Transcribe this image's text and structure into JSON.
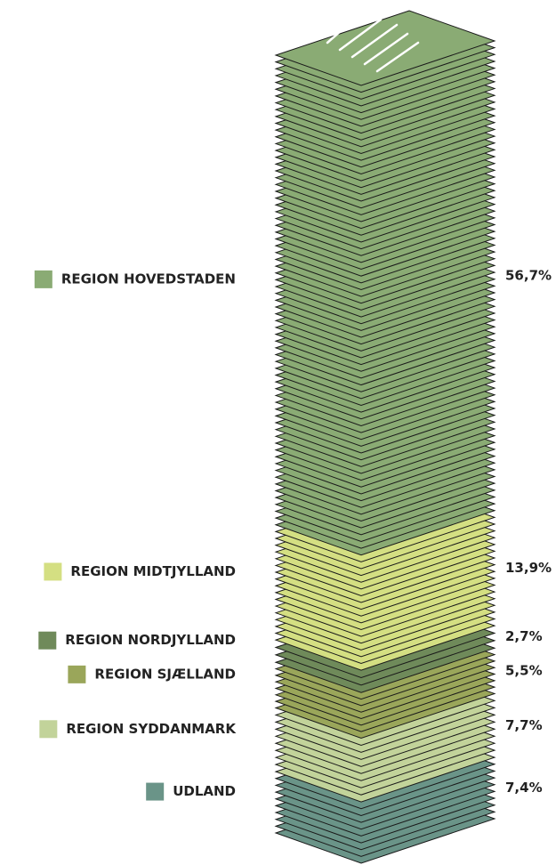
{
  "chart_data": {
    "type": "stacked-layers",
    "series": [
      {
        "name": "REGION HOVEDSTADEN",
        "color": "#8aab74",
        "values": [
          56.7
        ],
        "value_labels": [
          "56,7%"
        ]
      },
      {
        "name": "REGION MIDTJYLLAND",
        "color": "#d4df82",
        "values": [
          13.9
        ],
        "value_labels": [
          "13,9%"
        ]
      },
      {
        "name": "REGION NORDJYLLAND",
        "color": "#6f8a5a",
        "values": [
          2.7
        ],
        "value_labels": [
          "2,7%"
        ]
      },
      {
        "name": "REGION SJÆLLAND",
        "color": "#9aa65a",
        "values": [
          5.5
        ],
        "value_labels": [
          "5,5%"
        ]
      },
      {
        "name": "REGION SYDDANMARK",
        "color": "#c2d39a",
        "values": [
          7.7
        ],
        "value_labels": [
          "7,7%"
        ]
      },
      {
        "name": "UDLAND",
        "color": "#6a9488",
        "values": [
          7.4
        ],
        "value_labels": [
          "7,4%"
        ]
      }
    ]
  }
}
